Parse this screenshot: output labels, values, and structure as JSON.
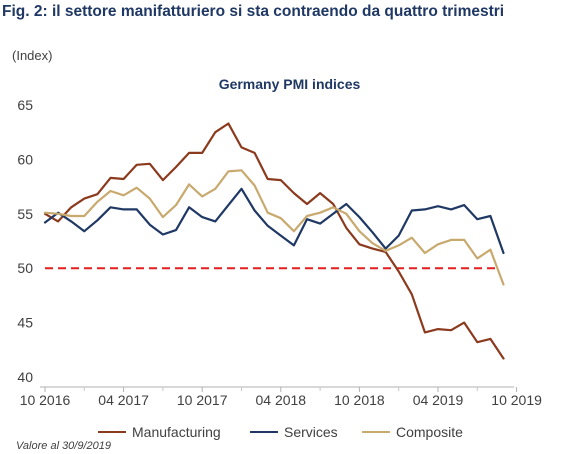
{
  "figure": {
    "title": "Fig. 2: il settore manifatturiero si sta contraendo da quattro trimestri",
    "unit_label": "(Index)",
    "note": "Valore al 30/9/2019"
  },
  "chart_data": {
    "type": "line",
    "title": "Germany PMI indices",
    "xlabel": "",
    "ylabel": "(Index)",
    "ylim": [
      40,
      65
    ],
    "yticks": [
      40,
      45,
      50,
      55,
      60,
      65
    ],
    "x_tick_labels": [
      "10 2016",
      "04 2017",
      "10 2017",
      "04 2018",
      "10 2018",
      "04 2019",
      "10 2019"
    ],
    "x": [
      "2016-10",
      "2016-11",
      "2016-12",
      "2017-01",
      "2017-02",
      "2017-03",
      "2017-04",
      "2017-05",
      "2017-06",
      "2017-07",
      "2017-08",
      "2017-09",
      "2017-10",
      "2017-11",
      "2017-12",
      "2018-01",
      "2018-02",
      "2018-03",
      "2018-04",
      "2018-05",
      "2018-06",
      "2018-07",
      "2018-08",
      "2018-09",
      "2018-10",
      "2018-11",
      "2018-12",
      "2019-01",
      "2019-02",
      "2019-03",
      "2019-04",
      "2019-05",
      "2019-06",
      "2019-07",
      "2019-08",
      "2019-09"
    ],
    "reference_line": {
      "value": 50,
      "style": "dashed",
      "color": "#e41e1e"
    },
    "grid": false,
    "legend_position": "bottom",
    "series": [
      {
        "name": "Manufacturing",
        "color": "#8b3a1e",
        "values": [
          55.0,
          54.3,
          55.6,
          56.4,
          56.8,
          58.3,
          58.2,
          59.5,
          59.6,
          58.1,
          59.3,
          60.6,
          60.6,
          62.5,
          63.3,
          61.1,
          60.6,
          58.2,
          58.1,
          56.9,
          55.9,
          56.9,
          55.9,
          53.7,
          52.2,
          51.8,
          51.5,
          49.7,
          47.6,
          44.1,
          44.4,
          44.3,
          45.0,
          43.2,
          43.5,
          41.7
        ]
      },
      {
        "name": "Services",
        "color": "#1f3864",
        "values": [
          54.2,
          55.1,
          54.3,
          53.4,
          54.4,
          55.6,
          55.4,
          55.4,
          54.0,
          53.1,
          53.5,
          55.6,
          54.7,
          54.3,
          55.8,
          57.3,
          55.3,
          53.9,
          53.0,
          52.1,
          54.5,
          54.1,
          55.0,
          55.9,
          54.7,
          53.3,
          51.8,
          53.0,
          55.3,
          55.4,
          55.7,
          55.4,
          55.8,
          54.5,
          54.8,
          51.4
        ]
      },
      {
        "name": "Composite",
        "color": "#c8a96e",
        "values": [
          55.1,
          55.0,
          54.8,
          54.8,
          56.1,
          57.1,
          56.7,
          57.4,
          56.4,
          54.7,
          55.8,
          57.7,
          56.6,
          57.3,
          58.9,
          59.0,
          57.6,
          55.1,
          54.6,
          53.4,
          54.8,
          55.1,
          55.6,
          55.0,
          53.4,
          52.3,
          51.6,
          52.1,
          52.8,
          51.4,
          52.2,
          52.6,
          52.6,
          50.9,
          51.7,
          48.5
        ]
      }
    ]
  }
}
